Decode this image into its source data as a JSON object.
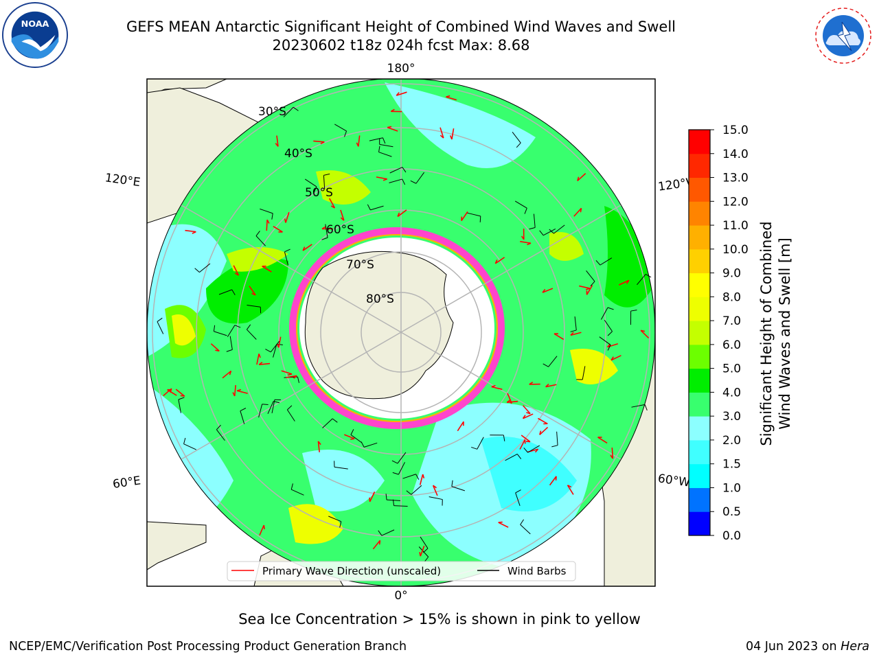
{
  "title": {
    "line1": "GEFS MEAN Antarctic Significant Height of Combined Wind Waves and Swell",
    "line2": "20230602 t18z 024h fcst   Max: 8.68"
  },
  "logos": {
    "left": "NOAA",
    "left_ring": "NATIONAL OCEANIC AND ATMOSPHERIC ADMINISTRATION · U.S. DEPARTMENT OF COMMERCE",
    "right_ring": "NATIONAL WEATHER SERVICE"
  },
  "map": {
    "projection": "south polar stereographic",
    "longitude_labels": [
      "180°",
      "120°E",
      "120°W",
      "60°E",
      "60°W",
      "0°"
    ],
    "latitude_labels": [
      "30°S",
      "40°S",
      "50°S",
      "60°S",
      "70°S",
      "80°S"
    ],
    "legend": {
      "wave_direction": "Primary Wave Direction (unscaled)",
      "wind_barbs": "Wind Barbs",
      "wave_color": "#ff0000",
      "barb_color": "#000000"
    }
  },
  "colorbar": {
    "label_line1": "Significant Height of Combined",
    "label_line2": "Wind Waves and Swell [m]",
    "ticks": [
      "0.0",
      "0.5",
      "1.0",
      "1.5",
      "2.0",
      "3.0",
      "4.0",
      "5.0",
      "6.0",
      "7.0",
      "8.0",
      "9.0",
      "10.0",
      "11.0",
      "12.0",
      "13.0",
      "14.0",
      "15.0"
    ],
    "colors": [
      "#0000ff",
      "#0073ff",
      "#00ffff",
      "#40ffff",
      "#8cffff",
      "#38ff6e",
      "#00ee00",
      "#6cff00",
      "#c4ff00",
      "#eeff00",
      "#ffff00",
      "#ffd000",
      "#ffb000",
      "#ff8400",
      "#ff5800",
      "#ff2800",
      "#ff0000"
    ]
  },
  "caption": "Sea Ice Concentration > 15% is shown in pink to yellow",
  "footer": {
    "left": "NCEP/EMC/Verification Post Processing Product Generation Branch",
    "right_prefix": "04 Jun 2023 on ",
    "right_italic": "Hera"
  }
}
